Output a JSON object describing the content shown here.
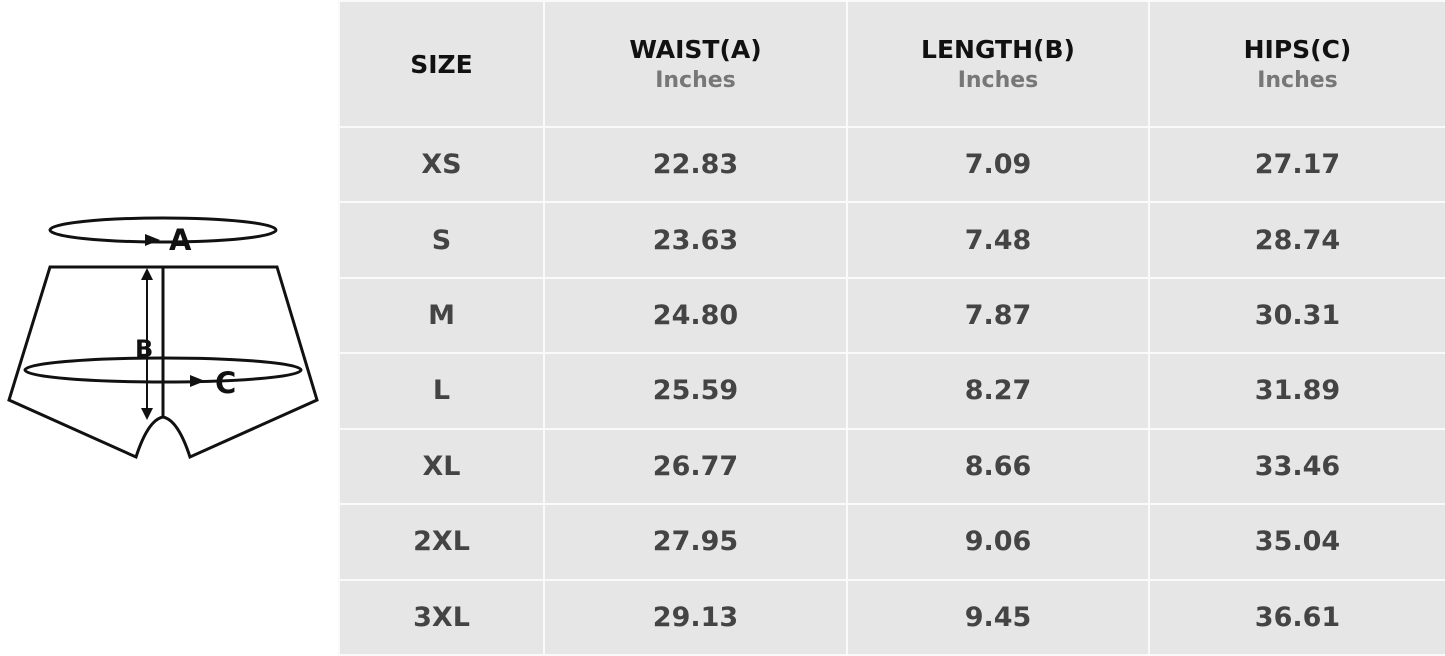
{
  "diagram": {
    "labels": {
      "a": "A",
      "b": "B",
      "c": "C"
    }
  },
  "table": {
    "headers": [
      {
        "title": "SIZE",
        "unit": ""
      },
      {
        "title": "WAIST(A)",
        "unit": "Inches"
      },
      {
        "title": "LENGTH(B)",
        "unit": "Inches"
      },
      {
        "title": "HIPS(C)",
        "unit": "Inches"
      }
    ],
    "rows": [
      [
        "XS",
        "22.83",
        "7.09",
        "27.17"
      ],
      [
        "S",
        "23.63",
        "7.48",
        "28.74"
      ],
      [
        "M",
        "24.80",
        "7.87",
        "30.31"
      ],
      [
        "L",
        "25.59",
        "8.27",
        "31.89"
      ],
      [
        "XL",
        "26.77",
        "8.66",
        "33.46"
      ],
      [
        "2XL",
        "27.95",
        "9.06",
        "35.04"
      ],
      [
        "3XL",
        "29.13",
        "9.45",
        "36.61"
      ]
    ]
  }
}
